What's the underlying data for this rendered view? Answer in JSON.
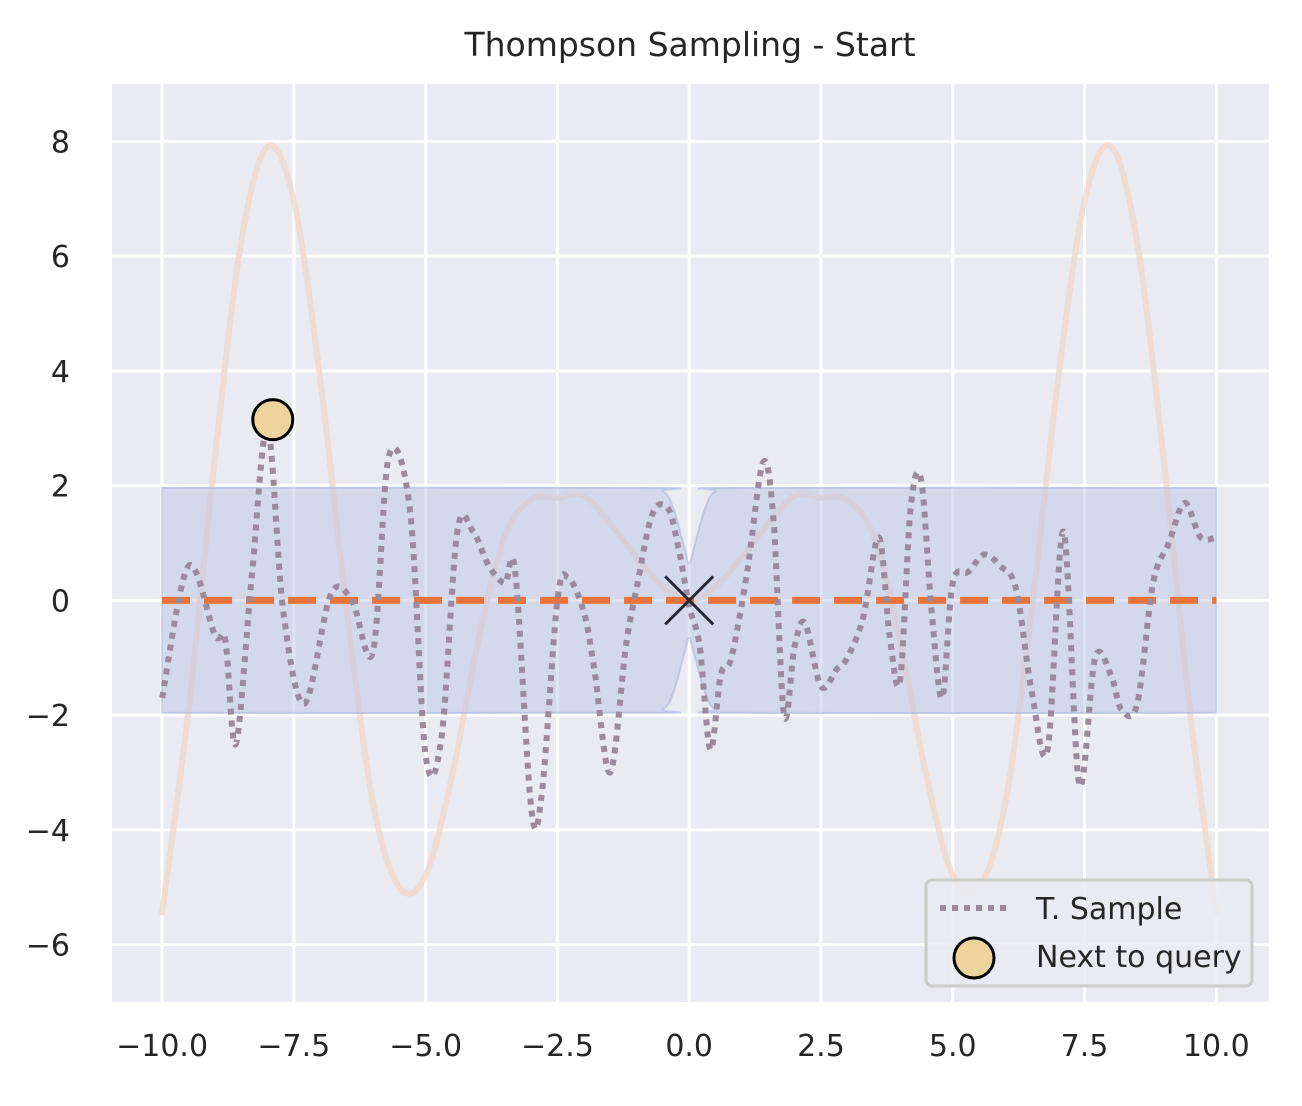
{
  "chart_data": {
    "type": "line",
    "title": "Thompson Sampling - Start",
    "xlabel": "",
    "ylabel": "",
    "xlim": [
      -10.95,
      11.0
    ],
    "ylim": [
      -7.0,
      9.0
    ],
    "xticks": [
      -10.0,
      -7.5,
      -5.0,
      -2.5,
      0.0,
      2.5,
      5.0,
      7.5,
      10.0
    ],
    "xtick_labels": [
      "−10.0",
      "−7.5",
      "−5.0",
      "−2.5",
      "0.0",
      "2.5",
      "5.0",
      "7.5",
      "10.0"
    ],
    "yticks": [
      -6,
      -4,
      -2,
      0,
      2,
      4,
      6,
      8
    ],
    "ytick_labels": [
      "−6",
      "−4",
      "−2",
      "0",
      "2",
      "4",
      "6",
      "8"
    ],
    "grid": true,
    "legend_position": "lower-right",
    "colors": {
      "background": "#eaeaf2",
      "grid": "#ffffff",
      "objective": "#f2d5c8",
      "band_fill": "#b8c4e3",
      "band_edge": "#9fb0d8",
      "mean": "#e8743b",
      "sample": "#9a8a9d",
      "marker_fill": "#edd49d",
      "marker_edge": "#000000",
      "observation": "#262633"
    },
    "series": [
      {
        "name": "",
        "role": "true objective",
        "x": [
          -10.0,
          -9.5,
          -9.0,
          -8.5,
          -8.0,
          -7.5,
          -7.0,
          -6.5,
          -6.0,
          -5.5,
          -5.0,
          -4.5,
          -4.0,
          -3.5,
          -3.0,
          -2.5,
          -2.0,
          -1.5,
          -1.0,
          -0.5,
          0.0,
          0.5,
          1.0,
          1.5,
          2.0,
          2.5,
          3.0,
          3.5,
          4.0,
          4.5,
          5.0,
          5.5,
          6.0,
          6.5,
          7.0,
          7.5,
          8.0,
          8.5,
          9.0,
          9.5,
          10.0
        ],
        "y": [
          -5.44,
          -1.92,
          2.47,
          6.24,
          7.91,
          6.96,
          3.86,
          -0.15,
          -3.52,
          -5.0,
          -4.79,
          -3.06,
          -0.7,
          1.12,
          1.75,
          1.79,
          1.82,
          1.34,
          0.75,
          0.24,
          0.0,
          0.24,
          0.75,
          1.34,
          1.82,
          1.79,
          1.75,
          1.12,
          -0.7,
          -3.06,
          -4.79,
          -5.0,
          -3.52,
          -0.15,
          3.86,
          6.96,
          7.91,
          6.24,
          2.47,
          -1.92,
          -5.44
        ]
      },
      {
        "name": "",
        "role": "posterior confidence band",
        "x": [
          -10.0,
          -1.0,
          -0.5,
          -0.3,
          -0.1,
          0.0,
          0.1,
          0.3,
          0.5,
          1.0,
          10.0
        ],
        "upper": [
          1.96,
          1.96,
          1.9,
          1.6,
          0.95,
          0.65,
          0.95,
          1.6,
          1.9,
          1.96,
          1.96
        ],
        "lower": [
          -1.96,
          -1.96,
          -1.9,
          -1.6,
          -0.95,
          -0.65,
          -0.95,
          -1.6,
          -1.9,
          -1.96,
          -1.96
        ]
      },
      {
        "name": "",
        "role": "posterior mean",
        "x": [
          -10.0,
          10.0
        ],
        "y": [
          0.0,
          0.0
        ]
      },
      {
        "name": "T. Sample",
        "x": [
          -10.0,
          -9.5,
          -9.0,
          -8.8,
          -8.6,
          -8.3,
          -8.0,
          -7.7,
          -7.3,
          -6.8,
          -6.4,
          -6.0,
          -5.7,
          -5.3,
          -5.0,
          -4.7,
          -4.4,
          -4.1,
          -3.8,
          -3.5,
          -3.3,
          -3.0,
          -2.8,
          -2.5,
          -2.3,
          -2.0,
          -1.8,
          -1.5,
          -1.2,
          -1.0,
          -0.7,
          -0.4,
          -0.2,
          0.0,
          0.2,
          0.4,
          0.6,
          0.8,
          1.1,
          1.4,
          1.6,
          1.8,
          2.0,
          2.2,
          2.5,
          2.8,
          3.0,
          3.3,
          3.6,
          3.8,
          4.0,
          4.2,
          4.4,
          4.6,
          4.8,
          5.0,
          5.3,
          5.6,
          5.9,
          6.2,
          6.5,
          6.8,
          7.1,
          7.4,
          7.7,
          8.0,
          8.2,
          8.5,
          8.8,
          9.1,
          9.4,
          9.7,
          10.0
        ],
        "y": [
          -1.7,
          0.6,
          -0.6,
          -0.7,
          -2.5,
          0.4,
          3.0,
          -0.2,
          -1.8,
          0.1,
          0.0,
          -0.9,
          2.5,
          1.6,
          -2.7,
          -2.4,
          1.2,
          1.2,
          0.6,
          0.3,
          0.5,
          -3.6,
          -3.4,
          0.0,
          0.4,
          -0.2,
          -1.2,
          -3.0,
          -0.8,
          0.2,
          1.5,
          1.6,
          0.9,
          -0.1,
          -0.8,
          -2.6,
          -1.3,
          -1.0,
          0.5,
          2.4,
          1.4,
          -2.0,
          -0.8,
          -0.4,
          -1.5,
          -1.2,
          -1.0,
          -0.3,
          1.1,
          -0.6,
          -1.4,
          1.6,
          2.1,
          -0.2,
          -1.7,
          0.3,
          0.5,
          0.8,
          0.6,
          0.2,
          -1.6,
          -2.6,
          1.2,
          -3.2,
          -1.0,
          -1.3,
          -1.9,
          -1.8,
          0.3,
          1.0,
          1.7,
          1.1,
          1.1
        ]
      }
    ],
    "observed": {
      "name": "",
      "x": [
        0.0
      ],
      "y": [
        0.0
      ]
    },
    "next_query": {
      "name": "Next to query",
      "x": -7.9,
      "y": 3.15
    }
  }
}
